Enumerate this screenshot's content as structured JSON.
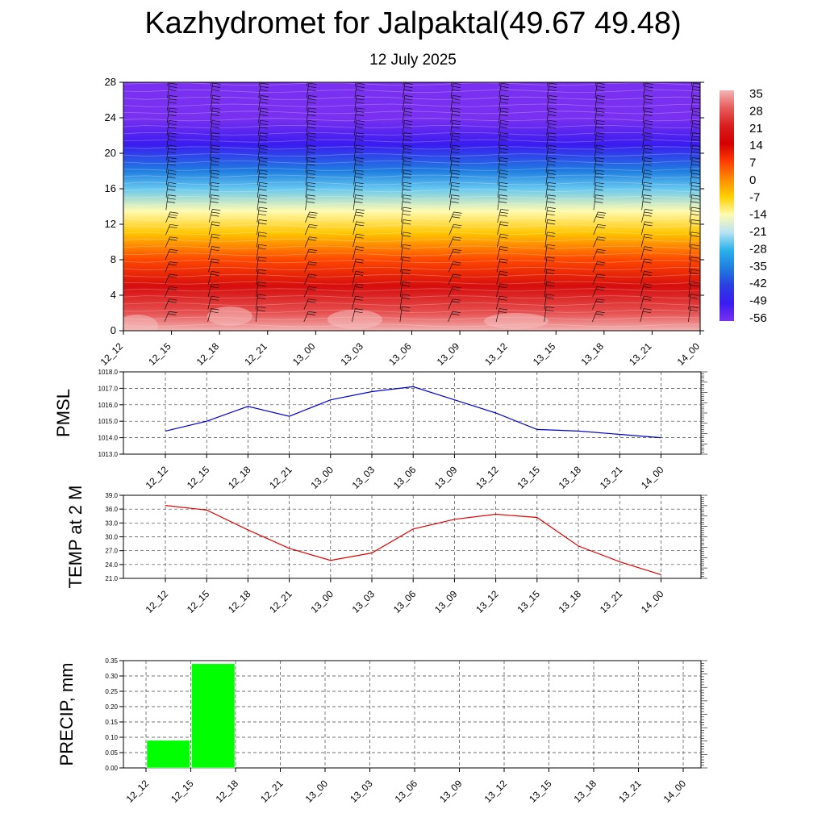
{
  "title": "Kazhydromet for Jalpaktal(49.67 49.48)",
  "subtitle": "12 July 2025",
  "colors": {
    "pmsl_line": "#0000cc",
    "temp_line": "#e00000",
    "precip_bar": "#00ff00",
    "wind_barb": "#111111"
  },
  "chart_data": [
    {
      "type": "heatmap",
      "title": "",
      "xlabel": "",
      "ylabel": "",
      "x": [
        "12_12",
        "12_15",
        "12_18",
        "12_21",
        "13_00",
        "13_03",
        "13_06",
        "13_09",
        "13_12",
        "13_15",
        "13_18",
        "13_21",
        "14_00"
      ],
      "y_ticks": [
        0,
        4,
        8,
        12,
        16,
        20,
        24,
        28
      ],
      "ylim": [
        0,
        28
      ],
      "colorbar_labels": [
        "35",
        "28",
        "21",
        "14",
        "7",
        "0",
        "-7",
        "-14",
        "-21",
        "-28",
        "-35",
        "-42",
        "-49",
        "-56"
      ],
      "colorbar_colors": [
        "#f3b3b3",
        "#e85a5a",
        "#d91e1e",
        "#d40000",
        "#ff3c00",
        "#ff8c00",
        "#ffd000",
        "#fffbb0",
        "#b9e3f5",
        "#2ab3ea",
        "#1f7ee0",
        "#2a3fe0",
        "#3a1cf0",
        "#7a30f0"
      ],
      "temperature_profile_by_height": [
        {
          "height": 0,
          "value": 35
        },
        {
          "height": 2,
          "value": 27
        },
        {
          "height": 5,
          "value": 17
        },
        {
          "height": 8,
          "value": 6
        },
        {
          "height": 11,
          "value": -6
        },
        {
          "height": 13.5,
          "value": -14
        },
        {
          "height": 16,
          "value": -25
        },
        {
          "height": 18,
          "value": -35
        },
        {
          "height": 21,
          "value": -49
        },
        {
          "height": 24,
          "value": -56
        },
        {
          "height": 28,
          "value": -60
        }
      ],
      "wind_barbs": true
    },
    {
      "type": "line",
      "ylabel": "PMSL",
      "x": [
        "12_12",
        "12_15",
        "12_18",
        "12_21",
        "13_00",
        "13_03",
        "13_06",
        "13_09",
        "13_12",
        "13_15",
        "13_18",
        "13_21",
        "14_00"
      ],
      "yticks": [
        "1013.0",
        "1014.0",
        "1015.0",
        "1016.0",
        "1017.0",
        "1018.0"
      ],
      "ylim": [
        1013,
        1018
      ],
      "series": [
        {
          "values": [
            1014.4,
            1015.0,
            1015.9,
            1015.3,
            1016.3,
            1016.8,
            1017.1,
            1016.3,
            1015.5,
            1014.5,
            1014.4,
            1014.2,
            1014.0
          ]
        }
      ],
      "grid": true
    },
    {
      "type": "line",
      "ylabel": "TEMP at 2 M",
      "x": [
        "12_12",
        "12_15",
        "12_18",
        "12_21",
        "13_00",
        "13_03",
        "13_06",
        "13_09",
        "13_12",
        "13_15",
        "13_18",
        "13_21",
        "14_00"
      ],
      "yticks": [
        "21.0",
        "24.0",
        "27.0",
        "30.0",
        "33.0",
        "36.0",
        "39.0"
      ],
      "ylim": [
        21,
        39
      ],
      "series": [
        {
          "values": [
            36.8,
            35.8,
            31.5,
            27.5,
            24.9,
            26.5,
            31.7,
            33.8,
            34.9,
            34.2,
            28.0,
            24.6,
            21.8
          ]
        }
      ],
      "grid": true
    },
    {
      "type": "bar",
      "ylabel": "PRECIP, mm",
      "categories": [
        "12_12",
        "12_15",
        "12_18",
        "12_21",
        "13_00",
        "13_03",
        "13_06",
        "13_09",
        "13_12",
        "13_15",
        "13_18",
        "13_21",
        "14_00"
      ],
      "yticks": [
        "0.00",
        "0.05",
        "0.10",
        "0.15",
        "0.20",
        "0.25",
        "0.30",
        "0.35"
      ],
      "ylim": [
        0,
        0.35
      ],
      "values": [
        0,
        0.09,
        0.34,
        0,
        0,
        0,
        0,
        0,
        0,
        0,
        0,
        0,
        0
      ],
      "grid": true
    }
  ]
}
